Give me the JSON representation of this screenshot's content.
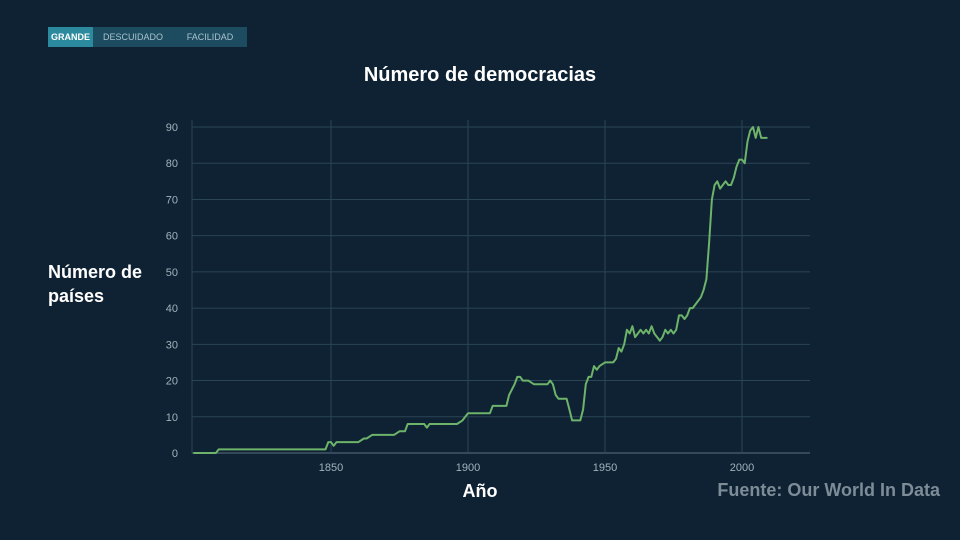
{
  "nav": {
    "tabs": [
      "GRANDE",
      "DESCUIDADO",
      "FACILIDAD"
    ]
  },
  "chart_data": {
    "type": "line",
    "title": "Número de democracias",
    "xlabel": "Año",
    "ylabel": "Número de países",
    "source": "Fuente: Our World In Data",
    "xlim": [
      1800,
      2025
    ],
    "ylim": [
      0,
      92
    ],
    "xticks": [
      1850,
      1900,
      1950,
      2000
    ],
    "yticks": [
      0,
      10,
      20,
      30,
      40,
      50,
      60,
      70,
      80,
      90
    ],
    "grid": true,
    "line_color": "#6db36a",
    "x": [
      1800,
      1808,
      1809,
      1848,
      1849,
      1850,
      1851,
      1852,
      1860,
      1862,
      1863,
      1865,
      1873,
      1875,
      1877,
      1878,
      1884,
      1885,
      1886,
      1896,
      1898,
      1900,
      1908,
      1909,
      1914,
      1915,
      1917,
      1918,
      1919,
      1920,
      1922,
      1924,
      1929,
      1930,
      1931,
      1932,
      1933,
      1934,
      1936,
      1937,
      1938,
      1940,
      1941,
      1942,
      1943,
      1944,
      1945,
      1946,
      1947,
      1948,
      1950,
      1953,
      1954,
      1955,
      1956,
      1957,
      1958,
      1959,
      1960,
      1961,
      1962,
      1963,
      1964,
      1965,
      1966,
      1967,
      1968,
      1969,
      1970,
      1971,
      1972,
      1973,
      1974,
      1975,
      1976,
      1977,
      1978,
      1979,
      1980,
      1981,
      1982,
      1983,
      1985,
      1986,
      1987,
      1988,
      1989,
      1990,
      1991,
      1992,
      1993,
      1994,
      1995,
      1996,
      1997,
      1998,
      1999,
      2000,
      2001,
      2002,
      2003,
      2004,
      2005,
      2006,
      2007,
      2008,
      2009
    ],
    "y": [
      0,
      0,
      1,
      1,
      3,
      3,
      2,
      3,
      3,
      4,
      4,
      5,
      5,
      6,
      6,
      8,
      8,
      7,
      8,
      8,
      9,
      11,
      11,
      13,
      13,
      16,
      19,
      21,
      21,
      20,
      20,
      19,
      19,
      20,
      19,
      16,
      15,
      15,
      15,
      12,
      9,
      9,
      9,
      12,
      19,
      21,
      21,
      24,
      23,
      24,
      25,
      25,
      26,
      29,
      28,
      30,
      34,
      33,
      35,
      32,
      33,
      34,
      33,
      34,
      33,
      35,
      33,
      32,
      31,
      32,
      34,
      33,
      34,
      33,
      34,
      38,
      38,
      37,
      38,
      40,
      40,
      41,
      43,
      45,
      48,
      58,
      70,
      74,
      75,
      73,
      74,
      75,
      74,
      74,
      76,
      79,
      81,
      81,
      80,
      86,
      89,
      90,
      87,
      90,
      87,
      87,
      87
    ]
  }
}
